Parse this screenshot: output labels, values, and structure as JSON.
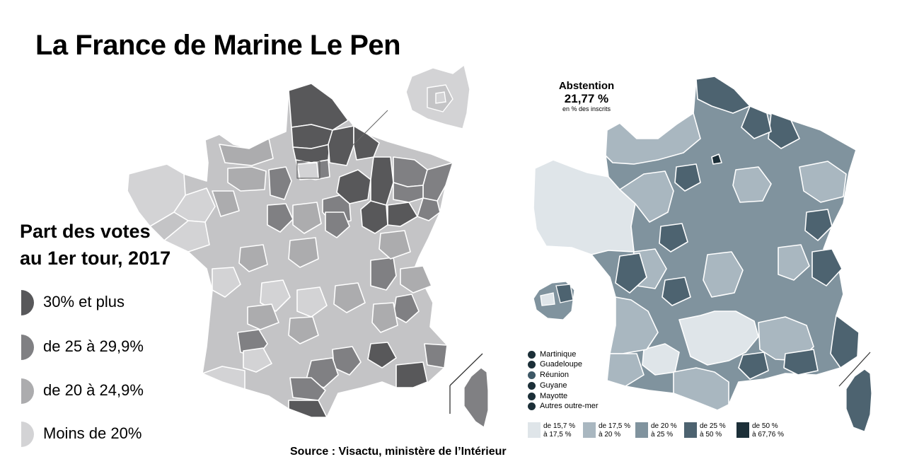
{
  "title": "La France de Marine Le Pen",
  "legend": {
    "title_line1": "Part des votes",
    "title_line2": "au 1er tour, 2017",
    "items": [
      {
        "label": "30% et plus",
        "color": "#58585a"
      },
      {
        "label": "de 25 à 29,9%",
        "color": "#808083"
      },
      {
        "label": "de 20 à 24,9%",
        "color": "#acacae"
      },
      {
        "label": "Moins de 20%",
        "color": "#d3d3d5"
      }
    ]
  },
  "abstention": {
    "title": "Abstention",
    "value": "21,77 %",
    "subtitle": "en % des inscrits",
    "territories": [
      {
        "label": "Martinique",
        "color": "#1c2f38"
      },
      {
        "label": "Guadeloupe",
        "color": "#1c2f38"
      },
      {
        "label": "Réunion",
        "color": "#3e5866"
      },
      {
        "label": "Guyane",
        "color": "#1c2f38"
      },
      {
        "label": "Mayotte",
        "color": "#1c2f38"
      },
      {
        "label": "Autres outre-mer",
        "color": "#1c2f38"
      }
    ],
    "scale": [
      {
        "line1": "de 15,7 %",
        "line2": "à 17,5 %",
        "color": "#dfe5e9"
      },
      {
        "line1": "de 17,5 %",
        "line2": "à 20 %",
        "color": "#a9b7c0"
      },
      {
        "line1": "de 20 %",
        "line2": "à 25 %",
        "color": "#80939e"
      },
      {
        "line1": "de 25 %",
        "line2": "à 50 %",
        "color": "#4d6370"
      },
      {
        "line1": "de 50 %",
        "line2": "à 67,76 %",
        "color": "#1c2f38"
      }
    ]
  },
  "source": "Source : Visactu, ministère de l’Intérieur"
}
